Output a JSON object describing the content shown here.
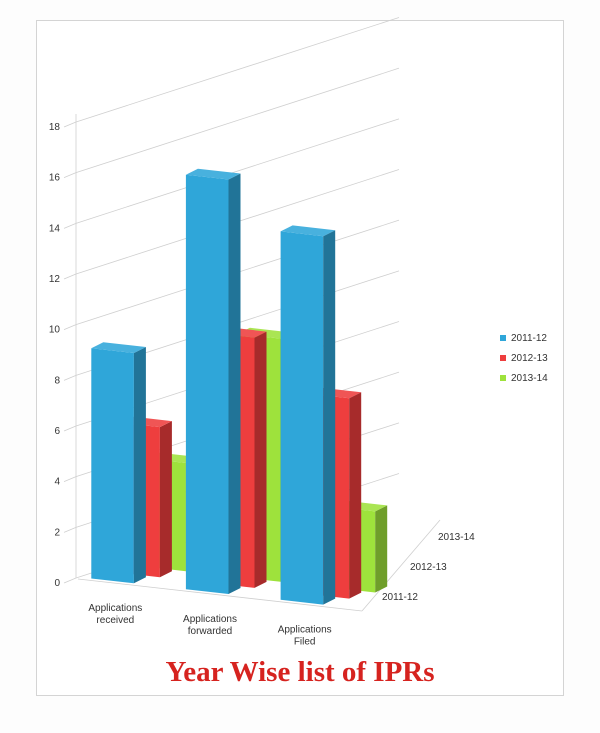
{
  "chart_data": {
    "type": "bar",
    "subtype": "3d-column",
    "title": "Year Wise list of IPRs",
    "categories": [
      "Applications received",
      "Applications forwarded",
      "Applications Filed"
    ],
    "category_label_lines": [
      [
        "Applications",
        "received"
      ],
      [
        "Applications",
        "forwarded"
      ],
      [
        "Applications",
        "Filed"
      ]
    ],
    "series": [
      {
        "name": "2011-12",
        "color": "#2fa6d9",
        "values": [
          10,
          18,
          16
        ]
      },
      {
        "name": "2012-13",
        "color": "#ee3e3e",
        "values": [
          6,
          10,
          8
        ]
      },
      {
        "name": "2013-14",
        "color": "#9ee23c",
        "values": [
          4,
          9,
          3
        ]
      }
    ],
    "depth_labels": [
      "2013-14",
      "2012-13",
      "2011-12"
    ],
    "yticks": [
      0,
      2,
      4,
      6,
      8,
      10,
      12,
      14,
      16,
      18
    ],
    "ylim": [
      0,
      18
    ],
    "grid": true,
    "legend": "right"
  }
}
